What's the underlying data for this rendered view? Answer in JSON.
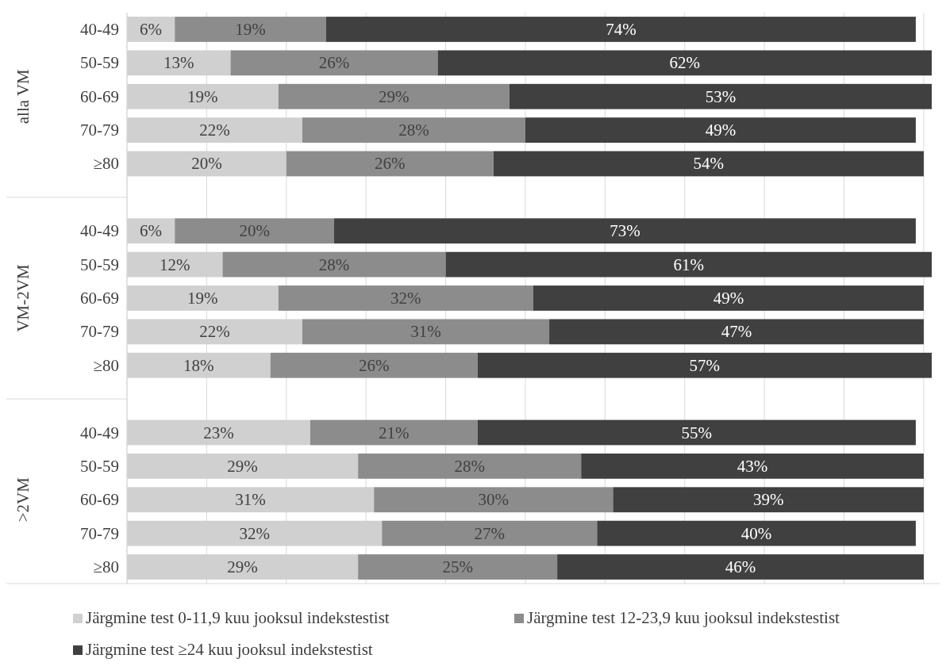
{
  "chart_data": {
    "type": "bar",
    "orientation": "horizontal",
    "stacked": true,
    "categories": [
      "40-49",
      "50-59",
      "60-69",
      "70-79",
      "≥80",
      null,
      "40-49",
      "50-59",
      "60-69",
      "70-79",
      "≥80",
      null,
      "40-49",
      "50-59",
      "60-69",
      "70-79",
      "≥80"
    ],
    "annotations": [
      "alla VM",
      "VM-2VM",
      ">2VM"
    ],
    "xlim": [
      0,
      102
    ],
    "xticks": [
      {
        "value": 0,
        "label": null
      },
      {
        "value": 10,
        "label": null
      },
      {
        "value": 20,
        "label": null
      },
      {
        "value": 30,
        "label": null
      },
      {
        "value": 40,
        "label": null
      },
      {
        "value": 50,
        "label": null
      },
      {
        "value": 60,
        "label": null
      },
      {
        "value": 70,
        "label": null
      },
      {
        "value": 80,
        "label": null
      },
      {
        "value": 90,
        "label": null
      },
      {
        "value": 100,
        "label": null
      }
    ],
    "grid": "x",
    "legend": "bottom",
    "series": [
      {
        "name": "Järgmine test 0-11,9 kuu jooksul indekstestist",
        "color": "#d0d0d0",
        "values": [
          6,
          13,
          19,
          22,
          20,
          null,
          6,
          12,
          19,
          22,
          18,
          null,
          23,
          29,
          31,
          32,
          29
        ],
        "value_labels": [
          "6%",
          "13%",
          "19%",
          "22%",
          "20%",
          null,
          "6%",
          "12%",
          "19%",
          "22%",
          "18%",
          null,
          "23%",
          "29%",
          "31%",
          "32%",
          "29%"
        ]
      },
      {
        "name": "Järgmine test 12-23,9 kuu jooksul indekstestist",
        "color": "#8c8c8c",
        "values": [
          19,
          26,
          29,
          28,
          26,
          null,
          20,
          28,
          32,
          31,
          26,
          null,
          21,
          28,
          30,
          27,
          25
        ],
        "value_labels": [
          "19%",
          "26%",
          "29%",
          "28%",
          "26%",
          null,
          "20%",
          "28%",
          "32%",
          "31%",
          "26%",
          null,
          "21%",
          "28%",
          "30%",
          "27%",
          "25%"
        ]
      },
      {
        "name": "Järgmine test ≥24 kuu jooksul indekstestist",
        "color": "#404040",
        "values": [
          74,
          62,
          53,
          49,
          54,
          null,
          73,
          61,
          49,
          47,
          57,
          null,
          55,
          43,
          39,
          40,
          46
        ],
        "value_labels": [
          "74%",
          "62%",
          "53%",
          "49%",
          "54%",
          null,
          "73%",
          "61%",
          "49%",
          "47%",
          "57%",
          null,
          "55%",
          "43%",
          "39%",
          "40%",
          "46%"
        ]
      }
    ]
  }
}
